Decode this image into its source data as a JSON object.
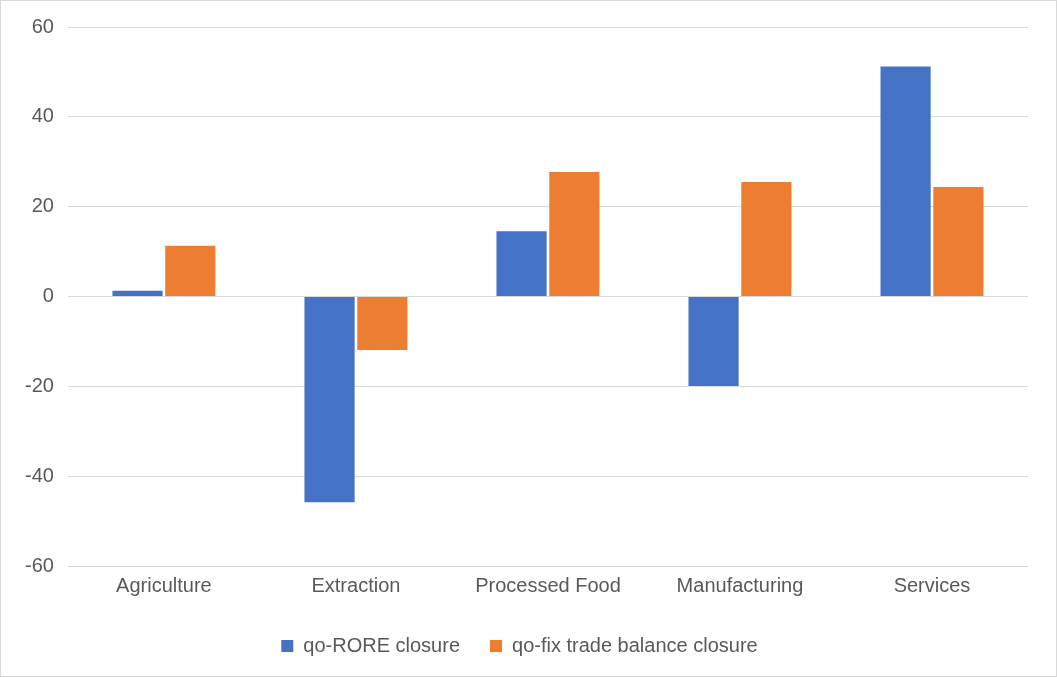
{
  "chart_data": {
    "type": "bar",
    "categories": [
      "Agriculture",
      "Extraction",
      "Processed Food",
      "Manufacturing",
      "Services"
    ],
    "series": [
      {
        "name": "qo-RORE closure",
        "color": "#4472c4",
        "values": [
          1.3,
          -45.8,
          14.5,
          -19.9,
          51.2
        ]
      },
      {
        "name": "qo-fix trade balance closure",
        "color": "#ed7d31",
        "values": [
          11.3,
          -11.9,
          27.7,
          25.5,
          24.4
        ]
      }
    ],
    "ylim": [
      -60,
      60
    ],
    "yticks": [
      -60,
      -40,
      -20,
      0,
      20,
      40,
      60
    ],
    "grid": "y",
    "legend": "bottom"
  }
}
